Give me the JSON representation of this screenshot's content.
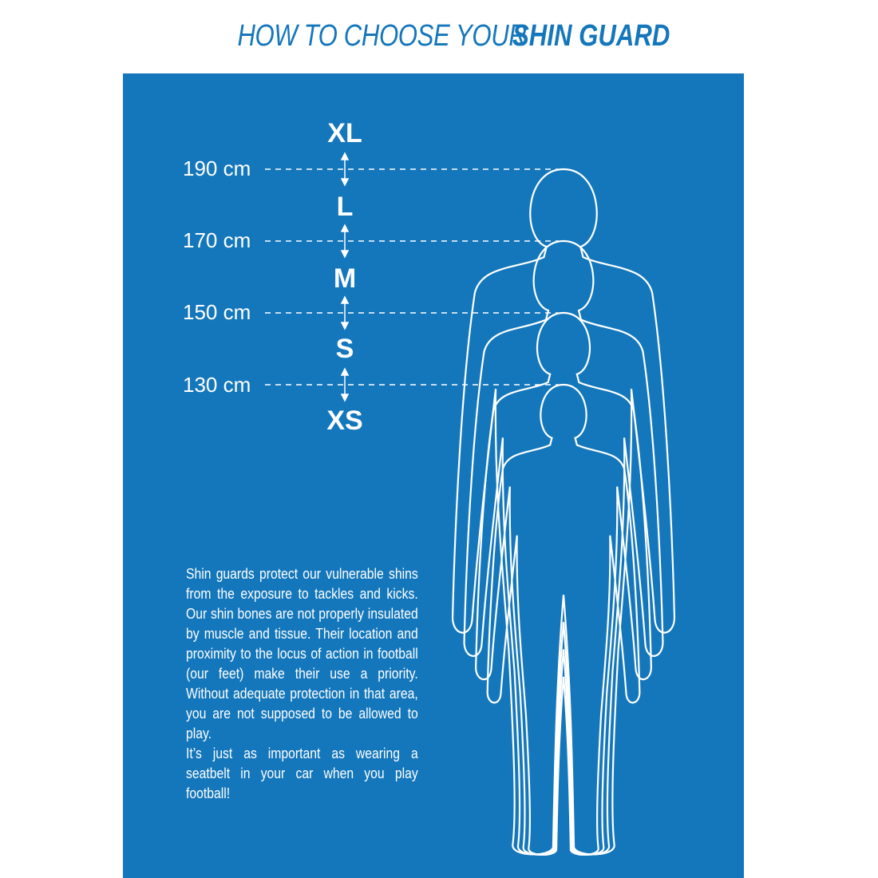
{
  "title": {
    "light": "HOW TO CHOOSE YOUR",
    "bold": "SHIN GUARD"
  },
  "colors": {
    "brand_blue": "#1577bb",
    "foreground": "#ffffff"
  },
  "sizes": [
    "XL",
    "L",
    "M",
    "S",
    "XS"
  ],
  "heights": [
    "190 cm",
    "170 cm",
    "150 cm",
    "130 cm"
  ],
  "description": {
    "p1": "Shin guards protect our vulnerable shins from the exposure to tackles and kicks. Our shin bones are not properly insulated by muscle and tissue. Their location and proximity to the locus of action in football (our feet) make their use a priority. Without adequate protection in that area, you are not supposed to be allowed to play.",
    "p2": "It’s just as important as wearing a seatbelt in your car when you play football!"
  }
}
